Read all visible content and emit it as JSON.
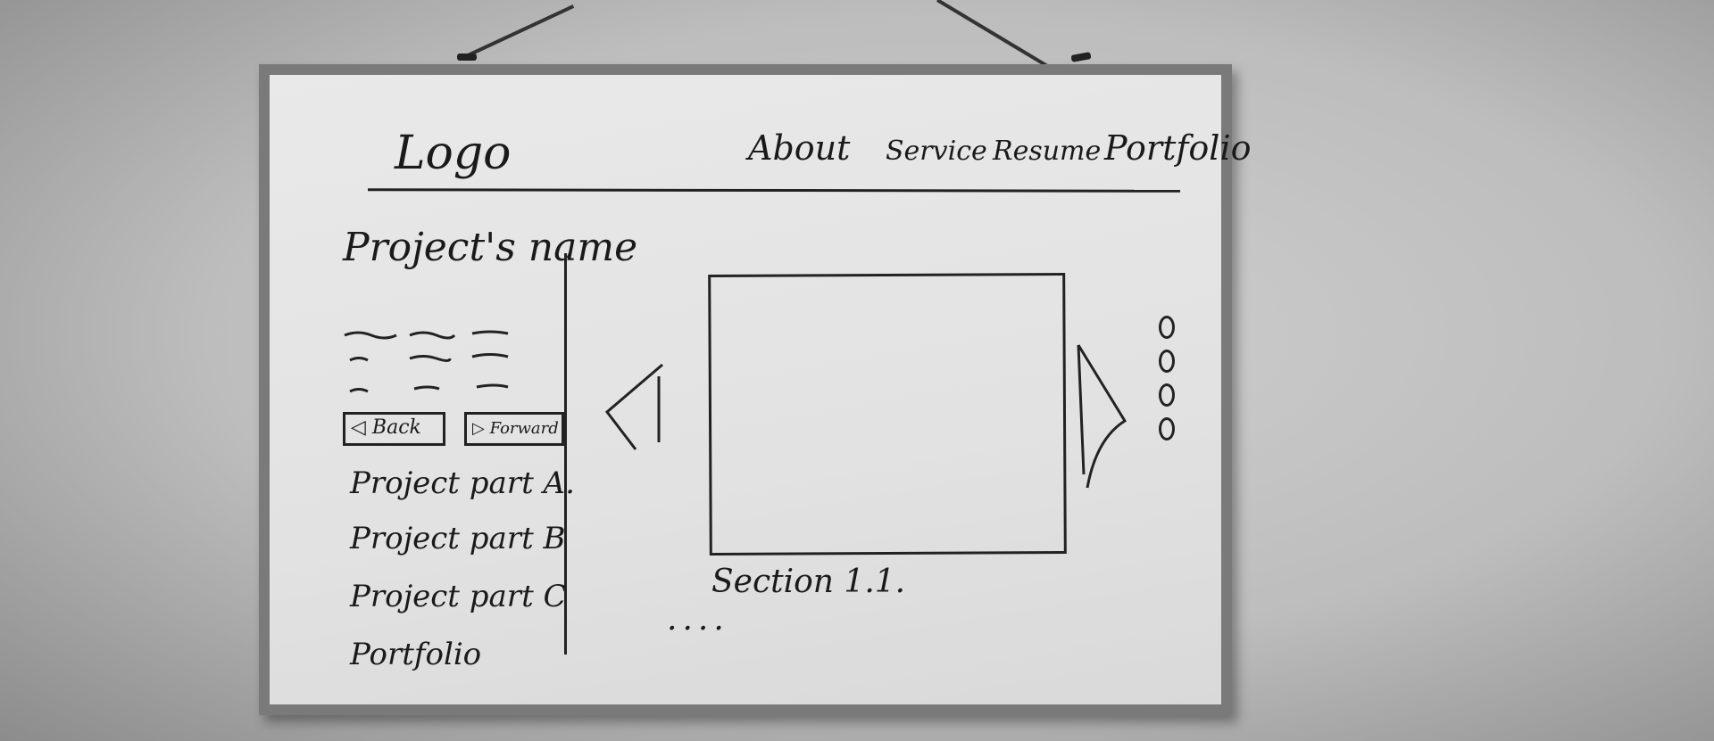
{
  "header": {
    "logo": "Logo",
    "nav": [
      "About",
      "Service",
      "Resume",
      "Portfolio"
    ]
  },
  "sidebar": {
    "project_name": "Project's name",
    "back_label": "◁ Back",
    "forward_label": "▷ Forward",
    "parts": [
      "Project part A.",
      "Project part B",
      "Project part C",
      "Portfolio"
    ]
  },
  "main": {
    "section_label": "Section 1.1.",
    "ellipsis": "....",
    "slide_indicator_count": 4
  },
  "colors": {
    "ink": "#1a1a1a",
    "board": "#e6e6e6",
    "frame": "#7a7a7a",
    "wall": "#bdbdbd"
  }
}
